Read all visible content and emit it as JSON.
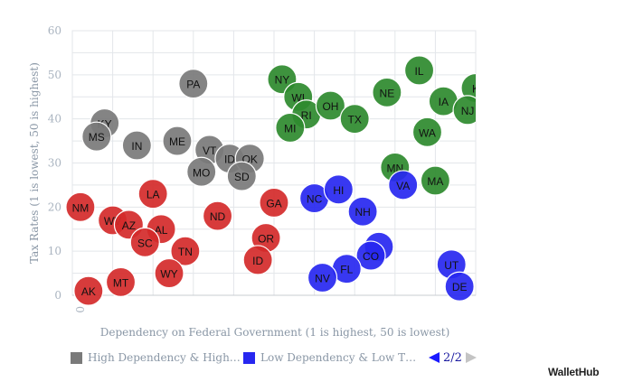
{
  "chart_data": {
    "type": "scatter",
    "xlabel": "Dependency on Federal Government (1 is highest, 50 is lowest)",
    "ylabel": "Tax Rates (1 is lowest, 50 is highest)",
    "xlim": [
      0,
      50
    ],
    "ylim": [
      0,
      60
    ],
    "yticks": [
      "0",
      "10",
      "20",
      "30",
      "40",
      "50",
      "60"
    ],
    "xticks": [
      "0"
    ],
    "grid": true,
    "legend_placement": "bottom",
    "colors": {
      "gray": "#7a7a7a",
      "green": "#2e8a2e",
      "red": "#d42a2a",
      "blue": "#2727f0"
    },
    "points": [
      {
        "label": "KY",
        "x": 4,
        "y": 39,
        "color": "gray"
      },
      {
        "label": "MS",
        "x": 3,
        "y": 36,
        "color": "gray"
      },
      {
        "label": "IN",
        "x": 8,
        "y": 34,
        "color": "gray"
      },
      {
        "label": "ME",
        "x": 13,
        "y": 35,
        "color": "gray"
      },
      {
        "label": "PA",
        "x": 15,
        "y": 48,
        "color": "gray"
      },
      {
        "label": "VT",
        "x": 17,
        "y": 33,
        "color": "gray"
      },
      {
        "label": "MO",
        "x": 16,
        "y": 28,
        "color": "gray"
      },
      {
        "label": "ID",
        "x": 19.5,
        "y": 31,
        "color": "gray"
      },
      {
        "label": "OK",
        "x": 22,
        "y": 31,
        "color": "gray"
      },
      {
        "label": "SD",
        "x": 21,
        "y": 27,
        "color": "gray"
      },
      {
        "label": "NY",
        "x": 26,
        "y": 49,
        "color": "green"
      },
      {
        "label": "WI",
        "x": 28,
        "y": 45,
        "color": "green"
      },
      {
        "label": "RI",
        "x": 29,
        "y": 41,
        "color": "green"
      },
      {
        "label": "MI",
        "x": 27,
        "y": 38,
        "color": "green"
      },
      {
        "label": "OH",
        "x": 32,
        "y": 43,
        "color": "green"
      },
      {
        "label": "TX",
        "x": 35,
        "y": 40,
        "color": "green"
      },
      {
        "label": "NE",
        "x": 39,
        "y": 46,
        "color": "green"
      },
      {
        "label": "IL",
        "x": 43,
        "y": 51,
        "color": "green"
      },
      {
        "label": "IA",
        "x": 46,
        "y": 44,
        "color": "green"
      },
      {
        "label": "K",
        "x": 50,
        "y": 47,
        "color": "green"
      },
      {
        "label": "NJ",
        "x": 49,
        "y": 42,
        "color": "green"
      },
      {
        "label": "WA",
        "x": 44,
        "y": 37,
        "color": "green"
      },
      {
        "label": "MN",
        "x": 40,
        "y": 29,
        "color": "green"
      },
      {
        "label": "MA",
        "x": 45,
        "y": 26,
        "color": "green"
      },
      {
        "label": "NM",
        "x": 1,
        "y": 20,
        "color": "red"
      },
      {
        "label": "WV",
        "x": 5,
        "y": 17,
        "color": "red"
      },
      {
        "label": "AZ",
        "x": 7,
        "y": 16,
        "color": "red"
      },
      {
        "label": "LA",
        "x": 10,
        "y": 23,
        "color": "red"
      },
      {
        "label": "AL",
        "x": 11,
        "y": 15,
        "color": "red"
      },
      {
        "label": "SC",
        "x": 9,
        "y": 12,
        "color": "red"
      },
      {
        "label": "ND",
        "x": 18,
        "y": 18,
        "color": "red"
      },
      {
        "label": "TN",
        "x": 14,
        "y": 10,
        "color": "red"
      },
      {
        "label": "WY",
        "x": 12,
        "y": 5,
        "color": "red"
      },
      {
        "label": "AK",
        "x": 2,
        "y": 1,
        "color": "red"
      },
      {
        "label": "MT",
        "x": 6,
        "y": 3,
        "color": "red"
      },
      {
        "label": "GA",
        "x": 25,
        "y": 21,
        "color": "red"
      },
      {
        "label": "OR",
        "x": 24,
        "y": 13,
        "color": "red"
      },
      {
        "label": "ID",
        "x": 23,
        "y": 8,
        "color": "red"
      },
      {
        "label": "NC",
        "x": 30,
        "y": 22,
        "color": "blue"
      },
      {
        "label": "HI",
        "x": 33,
        "y": 24,
        "color": "blue"
      },
      {
        "label": "NH",
        "x": 36,
        "y": 19,
        "color": "blue"
      },
      {
        "label": "VA",
        "x": 41,
        "y": 25,
        "color": "blue"
      },
      {
        "label": "",
        "x": 38,
        "y": 11,
        "color": "blue"
      },
      {
        "label": "CO",
        "x": 37,
        "y": 9,
        "color": "blue"
      },
      {
        "label": "FL",
        "x": 34,
        "y": 6,
        "color": "blue"
      },
      {
        "label": "NV",
        "x": 31,
        "y": 4,
        "color": "blue"
      },
      {
        "label": "UT",
        "x": 47,
        "y": 7,
        "color": "blue"
      },
      {
        "label": "DE",
        "x": 48,
        "y": 2,
        "color": "blue"
      }
    ]
  },
  "legend": {
    "items": [
      {
        "label": "High Dependency & High…",
        "color": "#7a7a7a"
      },
      {
        "label": "Low Dependency & Low T…",
        "color": "#2727f0"
      }
    ],
    "page_text": "2/2"
  },
  "brand": "WalletHub"
}
